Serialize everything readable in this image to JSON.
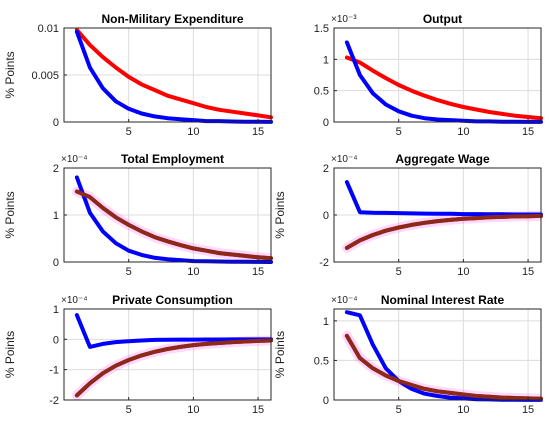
{
  "chart_data": [
    {
      "type": "line",
      "title": "Non-Military Expenditure",
      "ylabel": "% Points",
      "exponent": "",
      "xlim": [
        0,
        16
      ],
      "ylim": [
        0,
        0.01
      ],
      "xticks": [
        0,
        5,
        10,
        15
      ],
      "yticks": [
        0,
        0.005,
        0.01
      ],
      "ytick_labels": [
        "0",
        "0.005",
        "0.01"
      ],
      "grid": true,
      "series": [
        {
          "color": "#ff0000",
          "glow": false,
          "x": [
            1,
            2,
            3,
            4,
            5,
            6,
            7,
            8,
            9,
            10,
            11,
            12,
            13,
            14,
            15,
            16
          ],
          "values": [
            0.0098,
            0.0082,
            0.0069,
            0.0058,
            0.0048,
            0.004,
            0.0034,
            0.0028,
            0.0024,
            0.002,
            0.0016,
            0.0013,
            0.0011,
            0.0009,
            0.0007,
            0.0005
          ]
        },
        {
          "color": "#0000ff",
          "glow": false,
          "x": [
            1,
            2,
            3,
            4,
            5,
            6,
            7,
            8,
            9,
            10,
            11,
            12,
            13,
            14,
            15,
            16
          ],
          "values": [
            0.0096,
            0.0058,
            0.0036,
            0.0022,
            0.0014,
            0.0009,
            0.0006,
            0.0004,
            0.0003,
            0.0002,
            0.0001,
            0.0001,
            5e-05,
            3e-05,
            2e-05,
            1e-05
          ]
        }
      ]
    },
    {
      "type": "line",
      "title": "Output",
      "ylabel": "",
      "exponent": "×10⁻³",
      "xlim": [
        0,
        16
      ],
      "ylim": [
        0,
        1.5
      ],
      "xticks": [
        0,
        5,
        10,
        15
      ],
      "yticks": [
        0,
        0.5,
        1,
        1.5
      ],
      "ytick_labels": [
        "0",
        "0.5",
        "1",
        "1.5"
      ],
      "grid": true,
      "series": [
        {
          "color": "#ff0000",
          "glow": false,
          "x": [
            1,
            2,
            3,
            4,
            5,
            6,
            7,
            8,
            9,
            10,
            11,
            12,
            13,
            14,
            15,
            16
          ],
          "values": [
            1.03,
            0.95,
            0.82,
            0.7,
            0.59,
            0.5,
            0.42,
            0.35,
            0.29,
            0.24,
            0.2,
            0.16,
            0.13,
            0.1,
            0.08,
            0.06
          ]
        },
        {
          "color": "#0000ff",
          "glow": false,
          "x": [
            1,
            2,
            3,
            4,
            5,
            6,
            7,
            8,
            9,
            10,
            11,
            12,
            13,
            14,
            15,
            16
          ],
          "values": [
            1.27,
            0.75,
            0.46,
            0.28,
            0.17,
            0.1,
            0.06,
            0.04,
            0.03,
            0.02,
            0.01,
            0.01,
            0.005,
            0.003,
            0.002,
            0.001
          ]
        }
      ]
    },
    {
      "type": "line",
      "title": "Total Employment",
      "ylabel": "% Points",
      "exponent": "×10⁻⁴",
      "xlim": [
        0,
        16
      ],
      "ylim": [
        0,
        2
      ],
      "xticks": [
        0,
        5,
        10,
        15
      ],
      "yticks": [
        0,
        1,
        2
      ],
      "ytick_labels": [
        "0",
        "1",
        "2"
      ],
      "grid": true,
      "series": [
        {
          "color": "#ff0000",
          "glow": true,
          "x": [
            1,
            2,
            3,
            4,
            5,
            6,
            7,
            8,
            9,
            10,
            11,
            12,
            13,
            14,
            15,
            16
          ],
          "values": [
            1.5,
            1.38,
            1.15,
            0.95,
            0.79,
            0.65,
            0.53,
            0.44,
            0.36,
            0.29,
            0.24,
            0.19,
            0.16,
            0.13,
            0.1,
            0.08
          ]
        },
        {
          "color": "#0000ff",
          "glow": false,
          "x": [
            1,
            2,
            3,
            4,
            5,
            6,
            7,
            8,
            9,
            10,
            11,
            12,
            13,
            14,
            15,
            16
          ],
          "values": [
            1.8,
            1.05,
            0.65,
            0.4,
            0.24,
            0.15,
            0.09,
            0.06,
            0.04,
            0.02,
            0.015,
            0.01,
            0.006,
            0.004,
            0.002,
            0.001
          ]
        },
        {
          "color": "#8b2a1a",
          "glow": false,
          "x": [
            1,
            2,
            3,
            4,
            5,
            6,
            7,
            8,
            9,
            10,
            11,
            12,
            13,
            14,
            15,
            16
          ],
          "values": [
            1.5,
            1.38,
            1.15,
            0.95,
            0.79,
            0.65,
            0.53,
            0.44,
            0.36,
            0.29,
            0.24,
            0.19,
            0.16,
            0.13,
            0.1,
            0.08
          ]
        }
      ]
    },
    {
      "type": "line",
      "title": "Aggregate Wage",
      "ylabel": "% Points",
      "exponent": "×10⁻⁴",
      "xlim": [
        0,
        16
      ],
      "ylim": [
        -2,
        2
      ],
      "xticks": [
        0,
        5,
        10,
        15
      ],
      "yticks": [
        -2,
        0,
        2
      ],
      "ytick_labels": [
        "-2",
        "0",
        "2"
      ],
      "grid": true,
      "series": [
        {
          "color": "#ff0000",
          "glow": true,
          "x": [
            1,
            2,
            3,
            4,
            5,
            6,
            7,
            8,
            9,
            10,
            11,
            12,
            13,
            14,
            15,
            16
          ],
          "values": [
            -1.4,
            -1.08,
            -0.85,
            -0.67,
            -0.53,
            -0.42,
            -0.33,
            -0.26,
            -0.21,
            -0.16,
            -0.13,
            -0.1,
            -0.08,
            -0.06,
            -0.05,
            -0.04
          ]
        },
        {
          "color": "#0000ff",
          "glow": false,
          "x": [
            1,
            2,
            3,
            4,
            5,
            6,
            7,
            8,
            9,
            10,
            11,
            12,
            13,
            14,
            15,
            16
          ],
          "values": [
            1.4,
            0.12,
            0.1,
            0.09,
            0.08,
            0.07,
            0.06,
            0.05,
            0.05,
            0.04,
            0.04,
            0.03,
            0.03,
            0.02,
            0.02,
            0.02
          ]
        },
        {
          "color": "#8b2a1a",
          "glow": false,
          "x": [
            1,
            2,
            3,
            4,
            5,
            6,
            7,
            8,
            9,
            10,
            11,
            12,
            13,
            14,
            15,
            16
          ],
          "values": [
            -1.4,
            -1.08,
            -0.85,
            -0.67,
            -0.53,
            -0.42,
            -0.33,
            -0.26,
            -0.21,
            -0.16,
            -0.13,
            -0.1,
            -0.08,
            -0.06,
            -0.05,
            -0.04
          ]
        }
      ]
    },
    {
      "type": "line",
      "title": "Private Consumption",
      "ylabel": "% Points",
      "exponent": "×10⁻⁴",
      "xlim": [
        0,
        16
      ],
      "ylim": [
        -2,
        1
      ],
      "xticks": [
        0,
        5,
        10,
        15
      ],
      "yticks": [
        -2,
        -1,
        0,
        1
      ],
      "ytick_labels": [
        "-2",
        "-1",
        "0",
        "1"
      ],
      "grid": true,
      "series": [
        {
          "color": "#ff0000",
          "glow": true,
          "x": [
            1,
            2,
            3,
            4,
            5,
            6,
            7,
            8,
            9,
            10,
            11,
            12,
            13,
            14,
            15,
            16
          ],
          "values": [
            -1.85,
            -1.45,
            -1.12,
            -0.87,
            -0.68,
            -0.53,
            -0.41,
            -0.32,
            -0.25,
            -0.19,
            -0.15,
            -0.12,
            -0.09,
            -0.07,
            -0.05,
            -0.04
          ]
        },
        {
          "color": "#0000ff",
          "glow": false,
          "x": [
            1,
            2,
            3,
            4,
            5,
            6,
            7,
            8,
            9,
            10,
            11,
            12,
            13,
            14,
            15,
            16
          ],
          "values": [
            0.8,
            -0.25,
            -0.15,
            -0.09,
            -0.06,
            -0.04,
            -0.02,
            -0.015,
            -0.01,
            -0.008,
            -0.005,
            -0.004,
            -0.003,
            -0.002,
            -0.001,
            -0.001
          ]
        },
        {
          "color": "#8b2a1a",
          "glow": false,
          "x": [
            1,
            2,
            3,
            4,
            5,
            6,
            7,
            8,
            9,
            10,
            11,
            12,
            13,
            14,
            15,
            16
          ],
          "values": [
            -1.85,
            -1.45,
            -1.12,
            -0.87,
            -0.68,
            -0.53,
            -0.41,
            -0.32,
            -0.25,
            -0.19,
            -0.15,
            -0.12,
            -0.09,
            -0.07,
            -0.05,
            -0.04
          ]
        }
      ]
    },
    {
      "type": "line",
      "title": "Nominal Interest Rate",
      "ylabel": "% Points",
      "exponent": "×10⁻⁴",
      "xlim": [
        0,
        16
      ],
      "ylim": [
        0,
        1.15
      ],
      "xticks": [
        0,
        5,
        10,
        15
      ],
      "yticks": [
        0,
        0.5,
        1
      ],
      "ytick_labels": [
        "0",
        "0.5",
        "1"
      ],
      "grid": true,
      "series": [
        {
          "color": "#ff0000",
          "glow": true,
          "x": [
            1,
            2,
            3,
            4,
            5,
            6,
            7,
            8,
            9,
            10,
            11,
            12,
            13,
            14,
            15,
            16
          ],
          "values": [
            0.81,
            0.53,
            0.4,
            0.31,
            0.24,
            0.19,
            0.14,
            0.11,
            0.09,
            0.07,
            0.05,
            0.04,
            0.03,
            0.025,
            0.02,
            0.015
          ]
        },
        {
          "color": "#0000ff",
          "glow": false,
          "x": [
            1,
            2,
            3,
            4,
            5,
            6,
            7,
            8,
            9,
            10,
            11,
            12,
            13,
            14,
            15,
            16
          ],
          "values": [
            1.11,
            1.07,
            0.7,
            0.4,
            0.24,
            0.14,
            0.08,
            0.05,
            0.03,
            0.02,
            0.01,
            0.007,
            0.004,
            0.002,
            0.001,
            0.001
          ]
        },
        {
          "color": "#8b2a1a",
          "glow": false,
          "x": [
            1,
            2,
            3,
            4,
            5,
            6,
            7,
            8,
            9,
            10,
            11,
            12,
            13,
            14,
            15,
            16
          ],
          "values": [
            0.81,
            0.53,
            0.4,
            0.31,
            0.24,
            0.19,
            0.14,
            0.11,
            0.09,
            0.07,
            0.05,
            0.04,
            0.03,
            0.025,
            0.02,
            0.015
          ]
        }
      ]
    }
  ]
}
